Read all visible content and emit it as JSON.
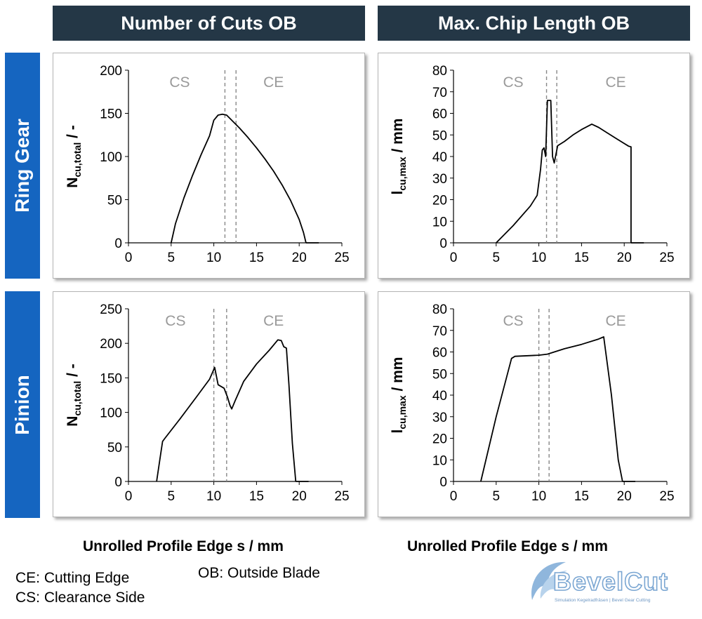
{
  "headers": {
    "col1": "Number of Cuts OB",
    "col2": "Max. Chip Length OB"
  },
  "row_labels": {
    "row1": "Ring Gear",
    "row2": "Pinion"
  },
  "x_axis_label_col1": "Unrolled Profile Edge s / mm",
  "x_axis_label_col2": "Unrolled Profile Edge s / mm",
  "legend": {
    "ce": "CE: Cutting Edge",
    "cs": "CS: Clearance Side",
    "ob": "OB: Outside Blade"
  },
  "logo": {
    "text": "BevelCut",
    "tagline": "Simulation Kegelradfräsen | Bevel Gear Cutting"
  },
  "colors": {
    "header_bg": "#243746",
    "row_label_bg": "#1565c0",
    "line": "#000000",
    "marker": "#888888",
    "zone_label": "#9a9a9a"
  },
  "chart_data": [
    {
      "id": "ring-cuts",
      "type": "line",
      "ylabel": {
        "main": "N",
        "sub": "cu,total",
        "suffix": " / -"
      },
      "xlim": [
        0,
        25
      ],
      "ylim": [
        0,
        200
      ],
      "xticks": [
        0,
        5,
        10,
        15,
        20,
        25
      ],
      "yticks": [
        0,
        50,
        100,
        150,
        200
      ],
      "zone_labels": [
        {
          "text": "CS",
          "x": 6
        },
        {
          "text": "CE",
          "x": 17
        }
      ],
      "markers": [
        11.3,
        12.6
      ],
      "series": [
        {
          "x": [
            5,
            5.5,
            6.5,
            7.5,
            8.5,
            9.5,
            10,
            10.5,
            11,
            11.5,
            12,
            13,
            14,
            15,
            16,
            17,
            18,
            19,
            20,
            20.5,
            20.8
          ],
          "y": [
            0,
            22,
            52,
            78,
            102,
            124,
            142,
            148,
            149,
            148,
            143,
            133,
            122,
            110,
            97,
            83,
            67,
            49,
            27,
            12,
            0
          ]
        }
      ]
    },
    {
      "id": "ring-chip",
      "type": "line",
      "ylabel": {
        "main": "l",
        "sub": "cu,max",
        "suffix": " / mm"
      },
      "xlim": [
        0,
        25
      ],
      "ylim": [
        0,
        80
      ],
      "xticks": [
        0,
        5,
        10,
        15,
        20,
        25
      ],
      "yticks": [
        0,
        10,
        20,
        30,
        40,
        50,
        60,
        70,
        80
      ],
      "zone_labels": [
        {
          "text": "CS",
          "x": 7
        },
        {
          "text": "CE",
          "x": 19
        }
      ],
      "markers": [
        10.9,
        12.1
      ],
      "series": [
        {
          "x": [
            5,
            7,
            9,
            9.8,
            10.2,
            10.4,
            10.6,
            10.8,
            11,
            11.2,
            11.4,
            11.6,
            11.8,
            12.2,
            13,
            14,
            15,
            16.2,
            17,
            18,
            19,
            20.5,
            20.8,
            20.8
          ],
          "y": [
            0,
            8,
            17,
            22,
            34,
            43,
            44,
            40,
            66,
            66,
            66,
            40,
            37,
            45,
            47,
            50,
            52.5,
            55,
            53.5,
            51,
            48.5,
            44.8,
            44.5,
            0
          ]
        }
      ]
    },
    {
      "id": "pinion-cuts",
      "type": "line",
      "ylabel": {
        "main": "N",
        "sub": "cu,total",
        "suffix": " / -"
      },
      "xlim": [
        0,
        25
      ],
      "ylim": [
        0,
        250
      ],
      "xticks": [
        0,
        5,
        10,
        15,
        20,
        25
      ],
      "yticks": [
        0,
        50,
        100,
        150,
        200,
        250
      ],
      "zone_labels": [
        {
          "text": "CS",
          "x": 5.5
        },
        {
          "text": "CE",
          "x": 17
        }
      ],
      "markers": [
        10,
        11.5
      ],
      "series": [
        {
          "x": [
            3.3,
            3.8,
            4,
            4.3,
            6,
            8,
            9.5,
            10.1,
            10.5,
            11.2,
            11.6,
            11.9,
            12.1,
            12.5,
            13.5,
            15,
            16.5,
            17.5,
            17.9,
            18.2,
            18.5,
            18.8,
            19.2,
            19.6
          ],
          "y": [
            0,
            42,
            58,
            63,
            90,
            123,
            148,
            165,
            140,
            135,
            122,
            110,
            105,
            117,
            145,
            170,
            190,
            205,
            204,
            195,
            193,
            140,
            55,
            0
          ]
        }
      ]
    },
    {
      "id": "pinion-chip",
      "type": "line",
      "ylabel": {
        "main": "l",
        "sub": "cu,max",
        "suffix": " / mm"
      },
      "xlim": [
        0,
        25
      ],
      "ylim": [
        0,
        80
      ],
      "xticks": [
        0,
        5,
        10,
        15,
        20,
        25
      ],
      "yticks": [
        0,
        10,
        20,
        30,
        40,
        50,
        60,
        70,
        80
      ],
      "zone_labels": [
        {
          "text": "CS",
          "x": 7
        },
        {
          "text": "CE",
          "x": 19
        }
      ],
      "markers": [
        10,
        11.2
      ],
      "series": [
        {
          "x": [
            3.2,
            5,
            6.8,
            7.2,
            9,
            10,
            11,
            13,
            15,
            17,
            17.6,
            18.5,
            19.3,
            19.8
          ],
          "y": [
            0,
            30,
            57,
            58,
            58.3,
            58.5,
            59,
            61.5,
            63.5,
            66,
            67,
            40,
            10,
            0
          ]
        }
      ]
    }
  ]
}
